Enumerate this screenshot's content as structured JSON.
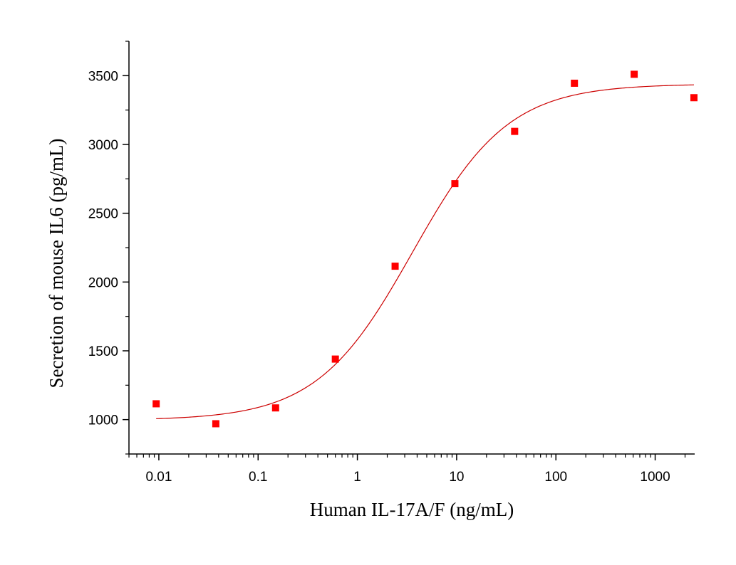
{
  "chart_data": {
    "type": "scatter",
    "title": "",
    "xlabel": "Human IL-17A/F (ng/mL)",
    "ylabel": "Secretion of mouse IL6 (pg/mL)",
    "x_scale": "log",
    "xlim": [
      0.005,
      2500
    ],
    "ylim": [
      750,
      3750
    ],
    "x_ticks": [
      0.01,
      0.1,
      1,
      10,
      100,
      1000
    ],
    "x_tick_labels": [
      "0.01",
      "0.1",
      "1",
      "10",
      "100",
      "1000"
    ],
    "y_ticks": [
      1000,
      1500,
      2000,
      2500,
      3000,
      3500
    ],
    "y_tick_labels": [
      "1000",
      "1500",
      "2000",
      "2500",
      "3000",
      "3500"
    ],
    "grid": false,
    "legend": "none",
    "series": [
      {
        "marker": "square",
        "color": "#ff0000",
        "points": [
          {
            "x": 0.0094,
            "y": 1115
          },
          {
            "x": 0.0375,
            "y": 970
          },
          {
            "x": 0.15,
            "y": 1085
          },
          {
            "x": 0.6,
            "y": 1440
          },
          {
            "x": 2.4,
            "y": 2115
          },
          {
            "x": 9.6,
            "y": 2715
          },
          {
            "x": 38.4,
            "y": 3095
          },
          {
            "x": 153.6,
            "y": 3445
          },
          {
            "x": 614.4,
            "y": 3510
          },
          {
            "x": 2457.6,
            "y": 3340
          }
        ]
      },
      {
        "type": "line",
        "color": "#cc0000",
        "fit": {
          "model": "4PL",
          "bottom": 995,
          "top": 3440,
          "ec50": 3.6,
          "hill": 0.9,
          "x_range": [
            0.0094,
            2457.6
          ]
        }
      }
    ]
  }
}
